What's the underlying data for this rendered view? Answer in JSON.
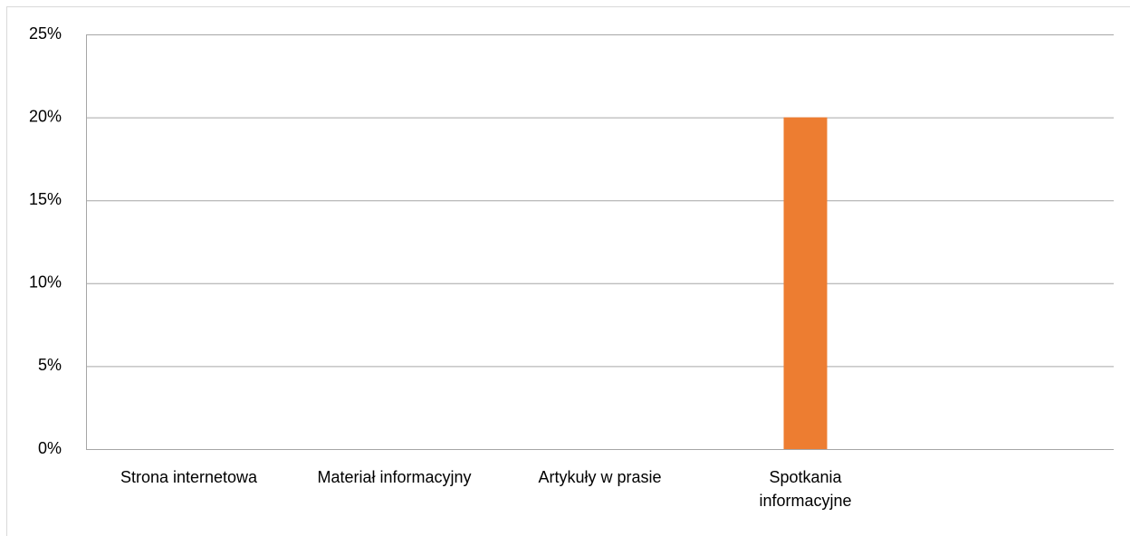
{
  "chart_data": {
    "type": "bar",
    "categories": [
      "Strona internetowa",
      "Materiał informacyjny",
      "Artykuły w prasie",
      "Spotkania informacyjne",
      null
    ],
    "values": [
      0,
      0,
      0,
      20,
      null
    ],
    "color": "#ed7d31",
    "ylim": [
      0,
      25
    ],
    "yticks": [
      {
        "value": 0,
        "label": "0%"
      },
      {
        "value": 5,
        "label": "5%"
      },
      {
        "value": 10,
        "label": "10%"
      },
      {
        "value": 15,
        "label": "15%"
      },
      {
        "value": 20,
        "label": "20%"
      },
      {
        "value": 25,
        "label": "25%"
      }
    ],
    "grid": true
  }
}
